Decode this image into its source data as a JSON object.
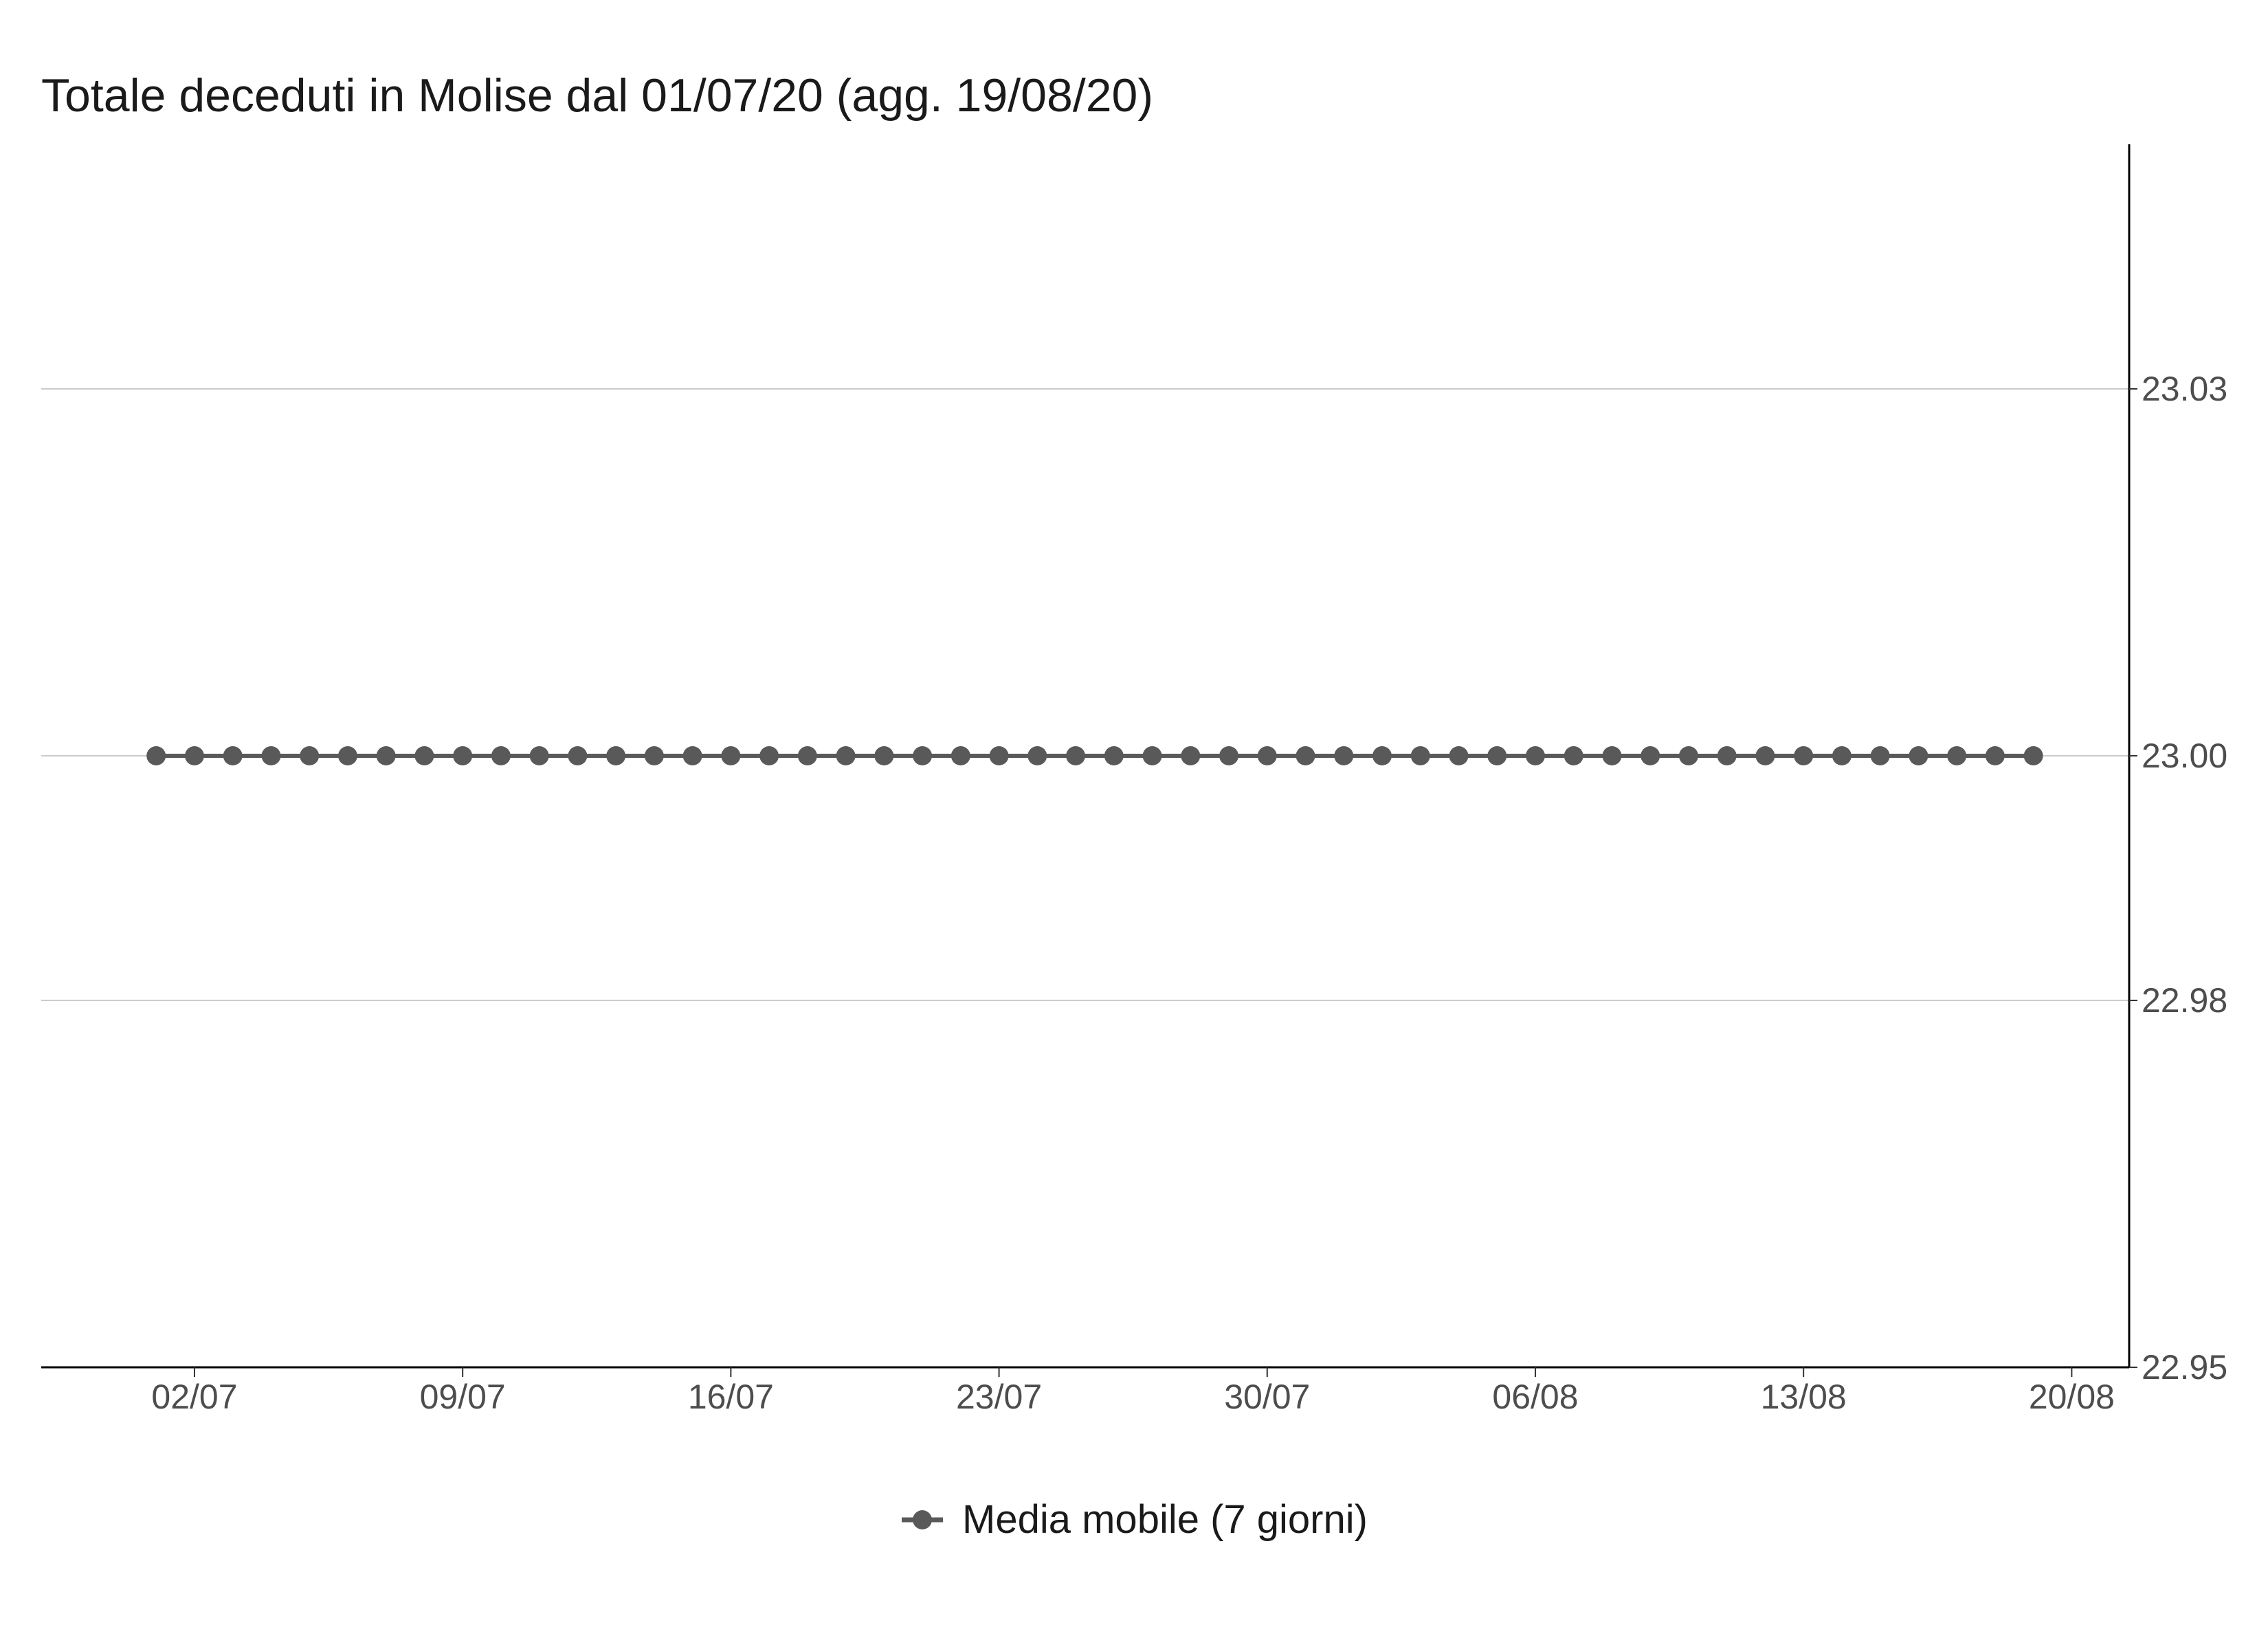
{
  "chart_data": {
    "type": "line",
    "title": "Totale deceduti in Molise dal 01/07/20 (agg. 19/08/20)",
    "xlabel": "",
    "ylabel": "",
    "x_start": "2020-07-01",
    "x_end": "2020-08-19",
    "x_ticks": [
      "02/07",
      "09/07",
      "16/07",
      "23/07",
      "30/07",
      "06/08",
      "13/08",
      "20/08"
    ],
    "y_ticks": [
      "22.95",
      "22.98",
      "23.00",
      "23.03"
    ],
    "ylim": [
      22.95,
      23.05
    ],
    "y_axis_position": "right",
    "grid": "horizontal",
    "legend_position": "bottom",
    "series": [
      {
        "name": "Media mobile (7 giorni)",
        "color": "#595959",
        "x": [
          "2020-07-01",
          "2020-07-02",
          "2020-07-03",
          "2020-07-04",
          "2020-07-05",
          "2020-07-06",
          "2020-07-07",
          "2020-07-08",
          "2020-07-09",
          "2020-07-10",
          "2020-07-11",
          "2020-07-12",
          "2020-07-13",
          "2020-07-14",
          "2020-07-15",
          "2020-07-16",
          "2020-07-17",
          "2020-07-18",
          "2020-07-19",
          "2020-07-20",
          "2020-07-21",
          "2020-07-22",
          "2020-07-23",
          "2020-07-24",
          "2020-07-25",
          "2020-07-26",
          "2020-07-27",
          "2020-07-28",
          "2020-07-29",
          "2020-07-30",
          "2020-07-31",
          "2020-08-01",
          "2020-08-02",
          "2020-08-03",
          "2020-08-04",
          "2020-08-05",
          "2020-08-06",
          "2020-08-07",
          "2020-08-08",
          "2020-08-09",
          "2020-08-10",
          "2020-08-11",
          "2020-08-12",
          "2020-08-13",
          "2020-08-14",
          "2020-08-15",
          "2020-08-16",
          "2020-08-17",
          "2020-08-18",
          "2020-08-19"
        ],
        "values": [
          23,
          23,
          23,
          23,
          23,
          23,
          23,
          23,
          23,
          23,
          23,
          23,
          23,
          23,
          23,
          23,
          23,
          23,
          23,
          23,
          23,
          23,
          23,
          23,
          23,
          23,
          23,
          23,
          23,
          23,
          23,
          23,
          23,
          23,
          23,
          23,
          23,
          23,
          23,
          23,
          23,
          23,
          23,
          23,
          23,
          23,
          23,
          23,
          23,
          23
        ]
      }
    ]
  }
}
